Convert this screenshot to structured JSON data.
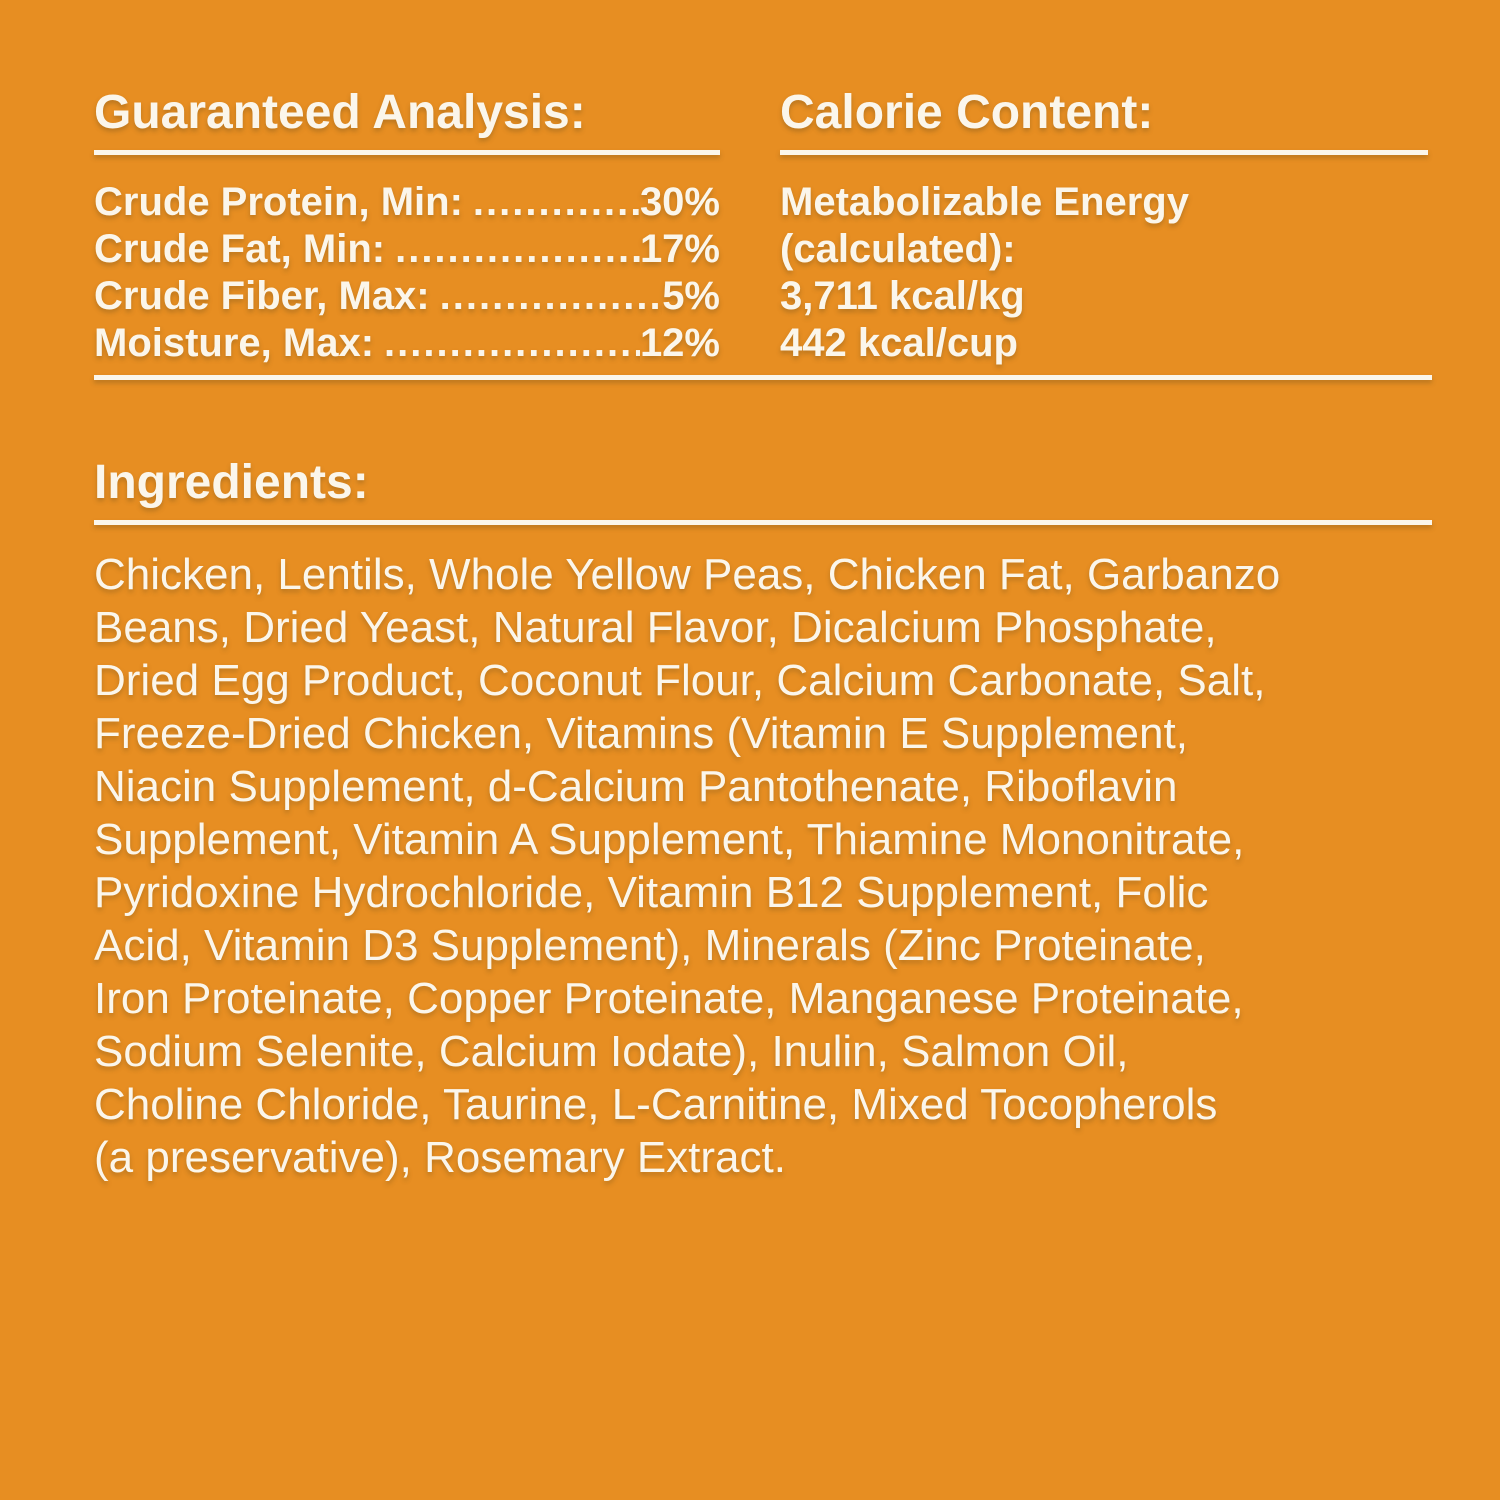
{
  "page": {
    "background_color": "#E78E22",
    "text_color": "#FBF6EB"
  },
  "guaranteed_analysis": {
    "title": "Guaranteed Analysis:",
    "rows": [
      {
        "label": "Crude Protein, Min:",
        "leader": "..................................................",
        "value": "30%"
      },
      {
        "label": "Crude Fat, Min:",
        "leader": "..................................................",
        "value": "17%"
      },
      {
        "label": "Crude Fiber, Max:",
        "leader": "..................................................",
        "value": "5%"
      },
      {
        "label": "Moisture, Max:",
        "leader": "..................................................",
        "value": "12%"
      }
    ]
  },
  "calorie_content": {
    "title": "Calorie Content:",
    "lines": "Metabolizable Energy\n(calculated):\n3,711 kcal/kg\n442 kcal/cup"
  },
  "ingredients": {
    "title": "Ingredients:",
    "text": "Chicken, Lentils, Whole Yellow Peas, Chicken Fat, Garbanzo\nBeans, Dried Yeast, Natural Flavor, Dicalcium Phosphate,\nDried Egg Product, Coconut Flour, Calcium Carbonate, Salt,\nFreeze-Dried Chicken, Vitamins (Vitamin E Supplement,\nNiacin Supplement, d-Calcium Pantothenate, Riboflavin\nSupplement, Vitamin A Supplement, Thiamine Mononitrate,\nPyridoxine Hydrochloride, Vitamin B12 Supplement, Folic\nAcid, Vitamin D3 Supplement), Minerals (Zinc Proteinate,\nIron Proteinate, Copper Proteinate, Manganese Proteinate,\nSodium Selenite, Calcium Iodate), Inulin, Salmon Oil,\nCholine Chloride, Taurine, L-Carnitine, Mixed Tocopherols\n(a preservative), Rosemary Extract."
  }
}
